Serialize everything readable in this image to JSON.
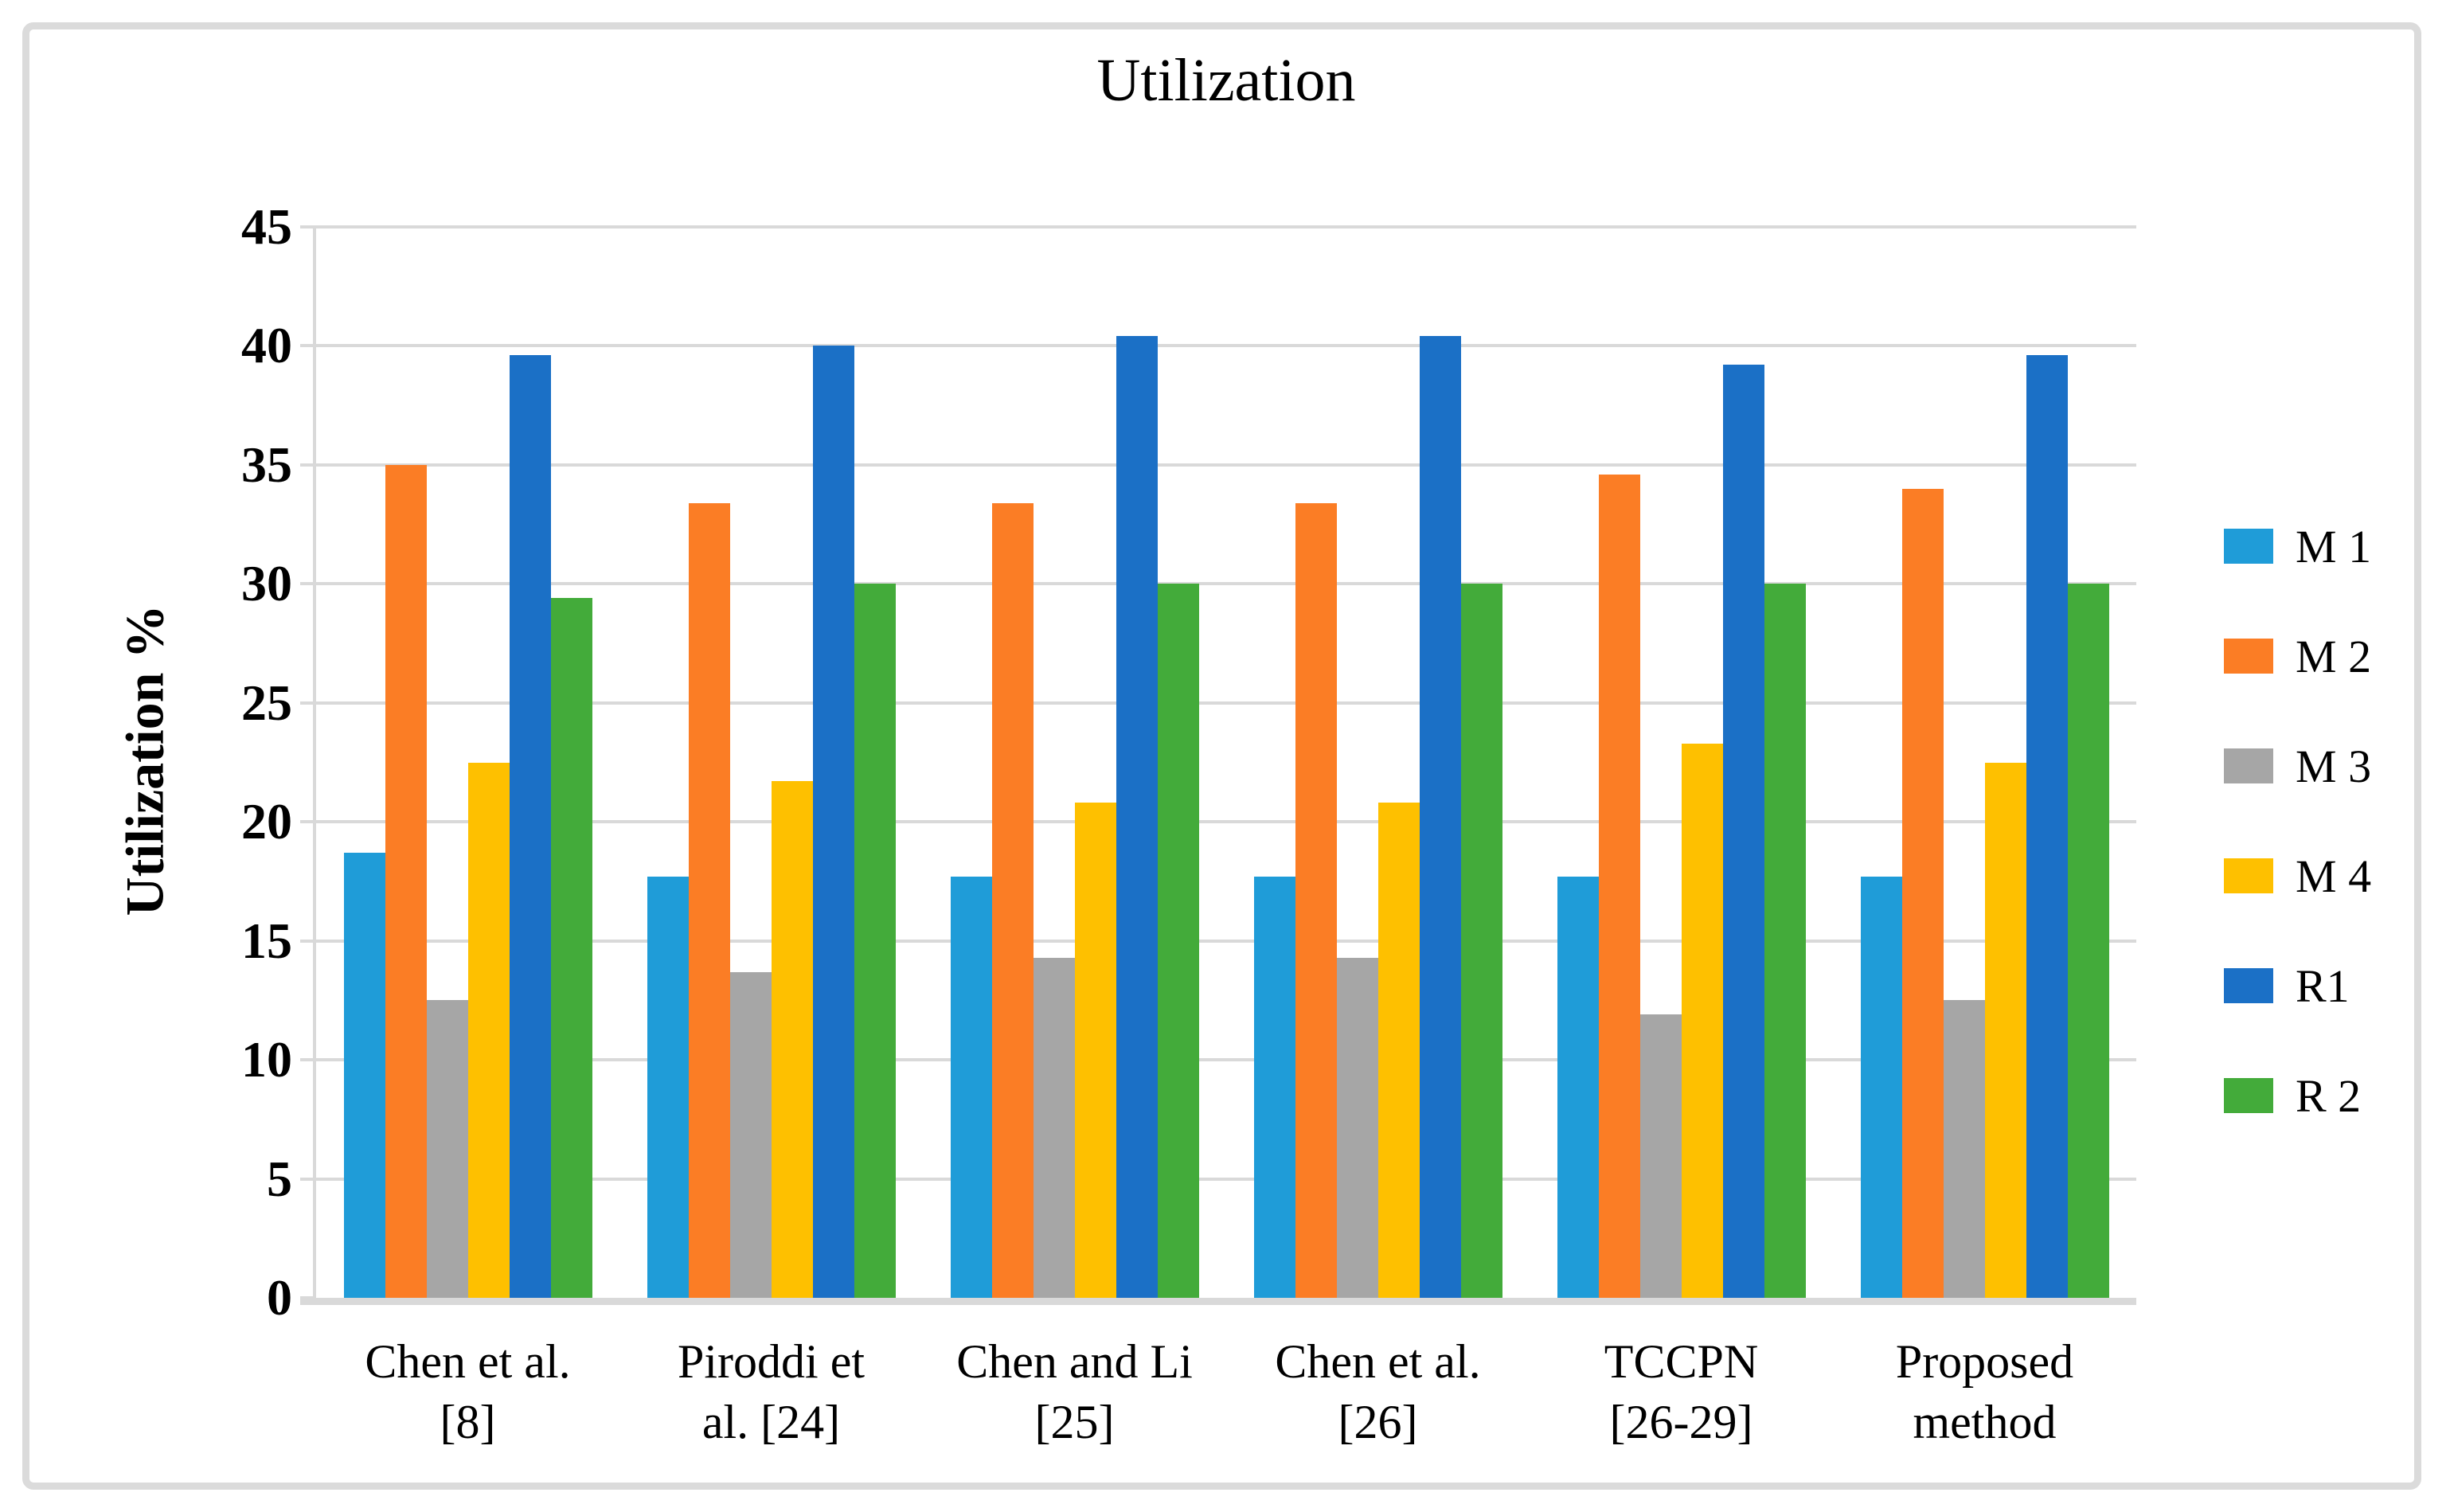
{
  "chart_data": {
    "type": "bar",
    "title": "Utilization",
    "xlabel": "",
    "ylabel": "Utilization %",
    "ylim": [
      0,
      45
    ],
    "yticks": [
      0,
      5,
      10,
      15,
      20,
      25,
      30,
      35,
      40,
      45
    ],
    "grid": true,
    "grid_color": "#d9d9d9",
    "legend_position": "right",
    "categories": [
      "Chen et al. [8]",
      "Piroddi et al. [24]",
      "Chen and Li [25]",
      "Chen et al. [26]",
      "TCCPN [26-29]",
      "Proposed method"
    ],
    "category_label_lines": [
      [
        "Chen et al.",
        "[8]"
      ],
      [
        "Piroddi et",
        "al. [24]"
      ],
      [
        "Chen and Li",
        "[25]"
      ],
      [
        "Chen et al.",
        "[26]"
      ],
      [
        "TCCPN",
        "[26-29]"
      ],
      [
        "Proposed",
        "method"
      ]
    ],
    "series": [
      {
        "name": "M 1",
        "color": "#1f9cd8",
        "values": [
          18.7,
          17.7,
          17.7,
          17.7,
          17.7,
          17.7
        ]
      },
      {
        "name": "M 2",
        "color": "#fb7d25",
        "values": [
          35.0,
          33.4,
          33.4,
          33.4,
          34.6,
          34.0
        ]
      },
      {
        "name": "M 3",
        "color": "#a6a6a6",
        "values": [
          12.5,
          13.7,
          14.3,
          14.3,
          11.9,
          12.5
        ]
      },
      {
        "name": "M 4",
        "color": "#fec000",
        "values": [
          22.5,
          21.7,
          20.8,
          20.8,
          23.3,
          22.5
        ]
      },
      {
        "name": "R1",
        "color": "#1b70c6",
        "values": [
          39.6,
          40.0,
          40.4,
          40.4,
          39.2,
          39.6
        ]
      },
      {
        "name": "R 2",
        "color": "#43ab3a",
        "values": [
          29.4,
          30.0,
          30.0,
          30.0,
          30.0,
          30.0
        ]
      }
    ]
  }
}
